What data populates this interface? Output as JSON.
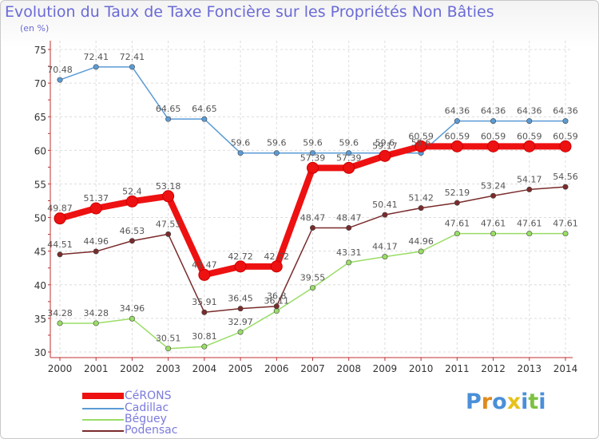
{
  "title": "Evolution du Taux de Taxe Foncière sur les Propriétés Non Bâties",
  "subtitle": "(en %)",
  "logo_text": "Proxiti",
  "chart_data": {
    "type": "line",
    "title": "Evolution du Taux de Taxe Foncière sur les Propriétés Non Bâties",
    "subtitle": "(en %)",
    "xlabel": "",
    "ylabel": "",
    "x": [
      "2000",
      "2001",
      "2002",
      "2003",
      "2004",
      "2005",
      "2006",
      "2007",
      "2008",
      "2009",
      "2010",
      "2011",
      "2012",
      "2013",
      "2014"
    ],
    "ylim": [
      30,
      75
    ],
    "yticks": [
      30,
      35,
      40,
      45,
      50,
      55,
      60,
      65,
      70,
      75
    ],
    "grid": true,
    "legend_position": "bottom-left",
    "series": [
      {
        "name": "CéRONS",
        "color": "#ee1111",
        "values": [
          49.87,
          51.37,
          52.4,
          53.18,
          41.47,
          42.72,
          42.72,
          57.39,
          57.39,
          59.17,
          60.59,
          60.59,
          60.59,
          60.59,
          60.59
        ],
        "labels": [
          "49.87",
          "51.37",
          "52.4",
          "53.18",
          "41.47",
          "42.72",
          "42.72",
          "57.39",
          "57.39",
          "59.17",
          "60.59",
          "60.59",
          "60.59",
          "60.59",
          "60.59"
        ]
      },
      {
        "name": "Cadillac",
        "color": "#5b9bd5",
        "values": [
          70.48,
          72.41,
          72.41,
          64.65,
          64.65,
          59.6,
          59.6,
          59.6,
          59.6,
          59.6,
          59.6,
          64.36,
          64.36,
          64.36,
          64.36
        ],
        "labels": [
          "70.48",
          "72.41",
          "72.41",
          "64.65",
          "64.65",
          "59.6",
          "59.6",
          "59.6",
          "59.6",
          "59.6",
          "59.6",
          "64.36",
          "64.36",
          "64.36",
          "64.36"
        ]
      },
      {
        "name": "Béguey",
        "color": "#99dd66",
        "values": [
          34.28,
          34.28,
          34.96,
          30.51,
          30.81,
          32.97,
          36.11,
          39.55,
          43.31,
          44.17,
          44.96,
          47.61,
          47.61,
          47.61,
          47.61
        ],
        "labels": [
          "34.28",
          "34.28",
          "34.96",
          "30.51",
          "30.81",
          "32.97",
          "36.11",
          "39.55",
          "43.31",
          "44.17",
          "44.96",
          "47.61",
          "47.61",
          "47.61",
          "47.61"
        ]
      },
      {
        "name": "Podensac",
        "color": "#7a2b2b",
        "values": [
          44.51,
          44.96,
          46.53,
          47.53,
          35.91,
          36.45,
          36.8,
          48.47,
          48.47,
          50.41,
          51.42,
          52.19,
          53.24,
          54.17,
          54.56
        ],
        "labels": [
          "44.51",
          "44.96",
          "46.53",
          "47.53",
          "35.91",
          "36.45",
          "36.8",
          "48.47",
          "48.47",
          "50.41",
          "51.42",
          "52.19",
          "53.24",
          "54.17",
          "54.56"
        ]
      }
    ]
  }
}
